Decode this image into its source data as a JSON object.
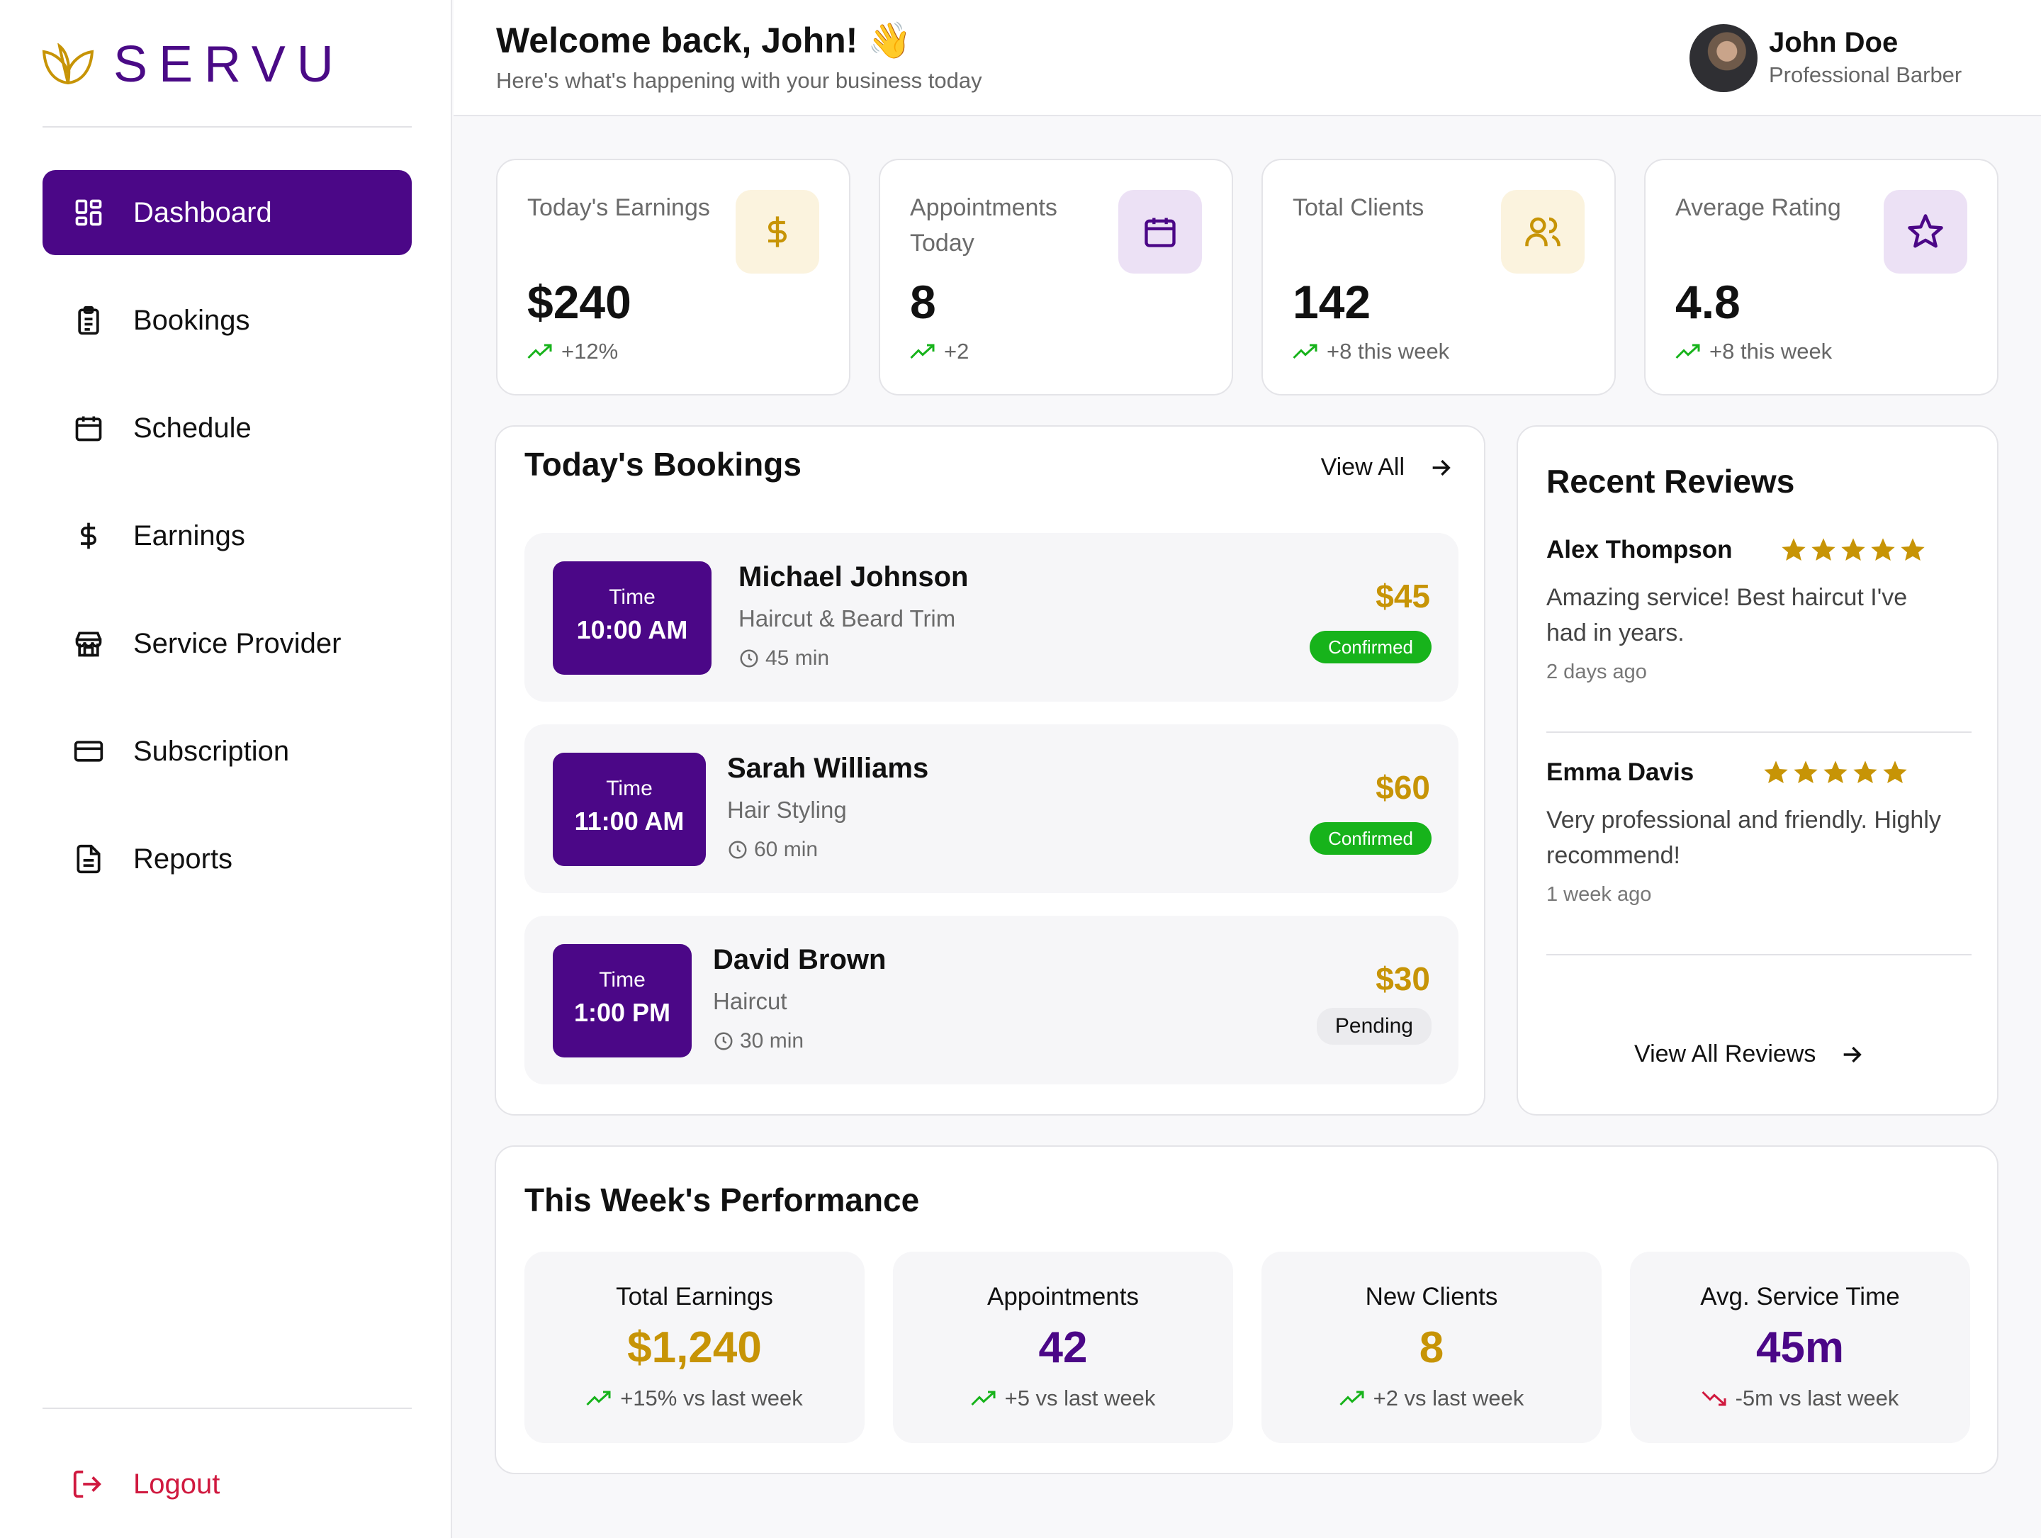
{
  "brand": {
    "name": "SERVU",
    "color": "#4b0787",
    "accent": "#c79406"
  },
  "sidebar": {
    "items": [
      {
        "label": "Dashboard",
        "icon": "dashboard-icon",
        "active": true
      },
      {
        "label": "Bookings",
        "icon": "clipboard-icon"
      },
      {
        "label": "Schedule",
        "icon": "calendar-icon"
      },
      {
        "label": "Earnings",
        "icon": "dollar-icon"
      },
      {
        "label": "Service Provider",
        "icon": "store-icon"
      },
      {
        "label": "Subscription",
        "icon": "credit-card-icon"
      },
      {
        "label": "Reports",
        "icon": "file-text-icon"
      }
    ],
    "logout": "Logout"
  },
  "header": {
    "welcome": "Welcome back, John! 👋",
    "subtitle": "Here's what's happening with your business today",
    "user_name": "John Doe",
    "user_role": "Professional Barber"
  },
  "stats": [
    {
      "label": "Today's Earnings",
      "value": "$240",
      "trend": "+12%",
      "icon": "dollar-icon"
    },
    {
      "label": "Appointments Today",
      "value": "8",
      "trend": "+2",
      "icon": "calendar-icon"
    },
    {
      "label": "Total Clients",
      "value": "142",
      "trend": "+8 this week",
      "icon": "users-icon"
    },
    {
      "label": "Average Rating",
      "value": "4.8",
      "trend": "+8 this week",
      "icon": "star-icon"
    }
  ],
  "bookings": {
    "title": "Today's Bookings",
    "view_all": "View All",
    "time_label": "Time",
    "items": [
      {
        "time": "10:00 AM",
        "name": "Michael Johnson",
        "service": "Haircut & Beard Trim",
        "duration": "45 min",
        "price": "$45",
        "status": "Confirmed"
      },
      {
        "time": "11:00 AM",
        "name": "Sarah Williams",
        "service": "Hair Styling",
        "duration": "60 min",
        "price": "$60",
        "status": "Confirmed"
      },
      {
        "time": "1:00 PM",
        "name": "David Brown",
        "service": "Haircut",
        "duration": "30 min",
        "price": "$30",
        "status": "Pending"
      }
    ]
  },
  "reviews": {
    "title": "Recent Reviews",
    "view_all": "View All Reviews",
    "items": [
      {
        "name": "Alex Thompson",
        "rating": 5,
        "text": "Amazing service! Best haircut I've had in years.",
        "time": "2 days ago"
      },
      {
        "name": "Emma Davis",
        "rating": 5,
        "text": "Very professional and friendly. Highly recommend!",
        "time": "1 week ago"
      }
    ]
  },
  "performance": {
    "title": "This Week's Performance",
    "items": [
      {
        "label": "Total Earnings",
        "value": "$1,240",
        "trend": "+15% vs last week",
        "direction": "up"
      },
      {
        "label": "Appointments",
        "value": "42",
        "trend": "+5 vs last week",
        "direction": "up"
      },
      {
        "label": "New Clients",
        "value": "8",
        "trend": "+2 vs last week",
        "direction": "up"
      },
      {
        "label": "Avg. Service Time",
        "value": "45m",
        "trend": "-5m vs last week",
        "direction": "down"
      }
    ]
  }
}
